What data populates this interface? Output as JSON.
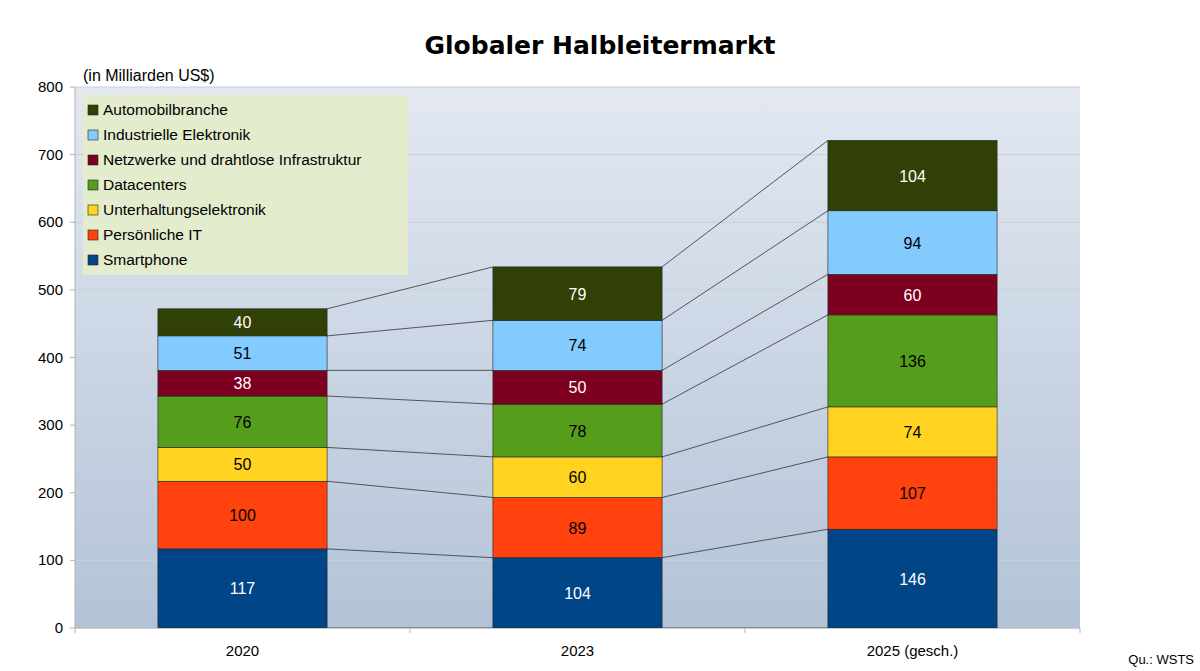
{
  "chart_data": {
    "type": "bar",
    "title": "Globaler Halbleitermarkt",
    "y_label": "(in Milliarden US$)",
    "source": "Qu.: WSTS",
    "categories": [
      "2020",
      "2023",
      "2025 (gesch.)"
    ],
    "series": [
      {
        "name": "Smartphone",
        "color": "#004586",
        "values": [
          117,
          104,
          146
        ]
      },
      {
        "name": "Persönliche IT",
        "color": "#ff420e",
        "values": [
          100,
          89,
          107
        ]
      },
      {
        "name": "Unterhaltungselektronik",
        "color": "#ffd320",
        "values": [
          50,
          60,
          74
        ]
      },
      {
        "name": "Datacenters",
        "color": "#579d1c",
        "values": [
          76,
          78,
          136
        ]
      },
      {
        "name": "Netzwerke und drahtlose Infrastruktur",
        "color": "#7e0021",
        "values": [
          38,
          50,
          60
        ]
      },
      {
        "name": "Industrielle Elektronik",
        "color": "#83caff",
        "values": [
          51,
          74,
          94
        ]
      },
      {
        "name": "Automobilbranche",
        "color": "#314004",
        "values": [
          40,
          79,
          104
        ]
      }
    ],
    "ylim": [
      0,
      800
    ],
    "yticks": [
      0,
      100,
      200,
      300,
      400,
      500,
      600,
      700,
      800
    ],
    "grid": true,
    "stacked": true,
    "data_labels": true,
    "legend": "top-left"
  }
}
